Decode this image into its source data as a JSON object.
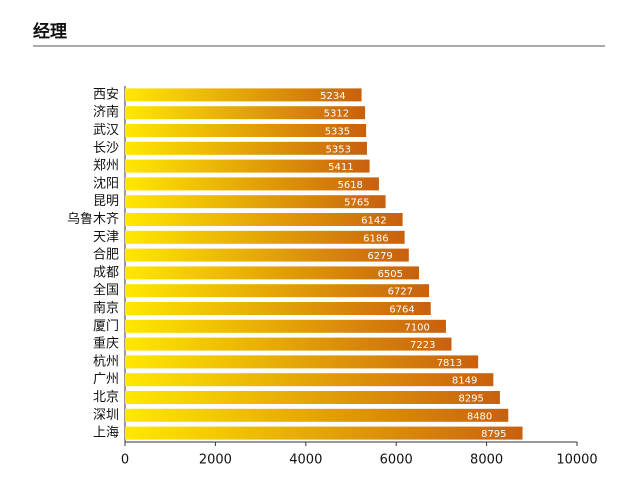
{
  "chart_data": {
    "type": "barh",
    "title": "经理",
    "categories": [
      "西安",
      "济南",
      "武汉",
      "长沙",
      "郑州",
      "沈阳",
      "昆明",
      "乌鲁木齐",
      "天津",
      "合肥",
      "成都",
      "全国",
      "南京",
      "厦门",
      "重庆",
      "杭州",
      "广州",
      "北京",
      "深圳",
      "上海"
    ],
    "values": [
      5234,
      5312,
      5335,
      5353,
      5411,
      5618,
      5765,
      6142,
      6186,
      6279,
      6505,
      6727,
      6764,
      7100,
      7223,
      7813,
      8149,
      8295,
      8480,
      8795
    ],
    "gradient": [
      "#ffe800",
      "#c8600e"
    ],
    "xlim": [
      0,
      10000
    ],
    "xticks": [
      0,
      2000,
      4000,
      6000,
      8000,
      10000
    ],
    "grid": false
  }
}
